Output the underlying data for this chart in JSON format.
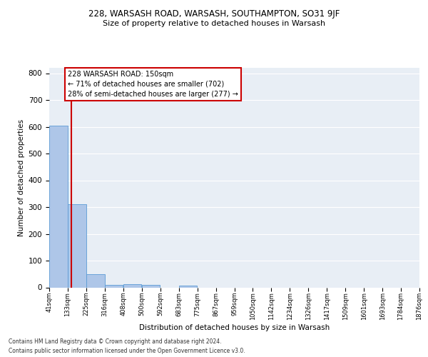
{
  "title1": "228, WARSASH ROAD, WARSASH, SOUTHAMPTON, SO31 9JF",
  "title2": "Size of property relative to detached houses in Warsash",
  "xlabel": "Distribution of detached houses by size in Warsash",
  "ylabel": "Number of detached properties",
  "footnote1": "Contains HM Land Registry data © Crown copyright and database right 2024.",
  "footnote2": "Contains public sector information licensed under the Open Government Licence v3.0.",
  "bar_left_edges": [
    41,
    133,
    225,
    316,
    408,
    500,
    592,
    683,
    775,
    867,
    959,
    1050,
    1142,
    1234,
    1326,
    1417,
    1509,
    1601,
    1693,
    1784
  ],
  "bar_heights": [
    605,
    310,
    50,
    10,
    13,
    10,
    0,
    7,
    0,
    0,
    0,
    0,
    0,
    0,
    0,
    0,
    0,
    0,
    0,
    0
  ],
  "bin_width": 92,
  "bar_color": "#aec6e8",
  "bar_edgecolor": "#5b9bd5",
  "property_x": 150,
  "property_line_color": "#cc0000",
  "annotation_line1": "228 WARSASH ROAD: 150sqm",
  "annotation_line2": "← 71% of detached houses are smaller (702)",
  "annotation_line3": "28% of semi-detached houses are larger (277) →",
  "annotation_box_color": "#cc0000",
  "ylim": [
    0,
    820
  ],
  "yticks": [
    0,
    100,
    200,
    300,
    400,
    500,
    600,
    700,
    800
  ],
  "xtick_labels": [
    "41sqm",
    "133sqm",
    "225sqm",
    "316sqm",
    "408sqm",
    "500sqm",
    "592sqm",
    "683sqm",
    "775sqm",
    "867sqm",
    "959sqm",
    "1050sqm",
    "1142sqm",
    "1234sqm",
    "1326sqm",
    "1417sqm",
    "1509sqm",
    "1601sqm",
    "1693sqm",
    "1784sqm",
    "1876sqm"
  ],
  "xtick_positions": [
    41,
    133,
    225,
    316,
    408,
    500,
    592,
    683,
    775,
    867,
    959,
    1050,
    1142,
    1234,
    1326,
    1417,
    1509,
    1601,
    1693,
    1784,
    1876
  ],
  "xlim_left": 41,
  "xlim_right": 1876,
  "plot_bg_color": "#e8eef5",
  "grid_color": "#ffffff",
  "title1_fontsize": 8.5,
  "title2_fontsize": 8.0,
  "ylabel_fontsize": 7.5,
  "xlabel_fontsize": 7.5,
  "annotation_fontsize": 7.0,
  "ytick_fontsize": 7.5,
  "xtick_fontsize": 6.0,
  "footnote_fontsize": 5.5
}
